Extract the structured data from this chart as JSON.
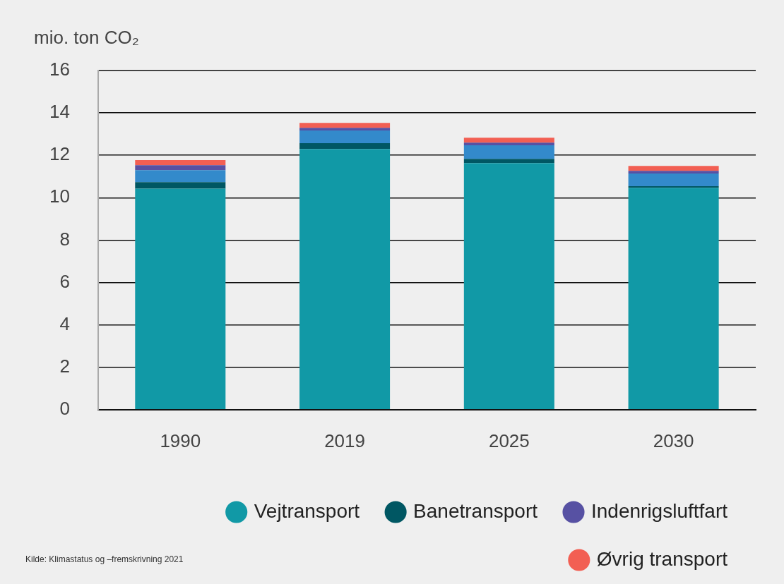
{
  "chart_data": {
    "type": "bar",
    "ylabel": "mio. ton CO₂",
    "categories": [
      "1990",
      "2019",
      "2025",
      "2030"
    ],
    "stacked": true,
    "series": [
      {
        "name": "Vejtransport",
        "color": "#1199a6",
        "values": [
          10.43,
          12.3,
          11.63,
          10.47
        ]
      },
      {
        "name": "Banetransport",
        "color": "#005763",
        "values": [
          0.3,
          0.27,
          0.2,
          0.07
        ]
      },
      {
        "color": "#338acb",
        "values": [
          0.57,
          0.6,
          0.64,
          0.6
        ]
      },
      {
        "name": "Indenrigsluftfart",
        "color": "#5751a3",
        "values": [
          0.23,
          0.13,
          0.13,
          0.13
        ]
      },
      {
        "name": "Øvrig transport",
        "color": "#f25f53",
        "values": [
          0.24,
          0.23,
          0.23,
          0.23
        ]
      }
    ],
    "ylim": [
      0,
      16
    ],
    "yticks": [
      0,
      2,
      4,
      6,
      8,
      10,
      12,
      14,
      16
    ],
    "grid": "y",
    "legend": "bottom right",
    "annotations": [
      "Kilde: Klimastatus og –fremskrivning 2021"
    ]
  }
}
